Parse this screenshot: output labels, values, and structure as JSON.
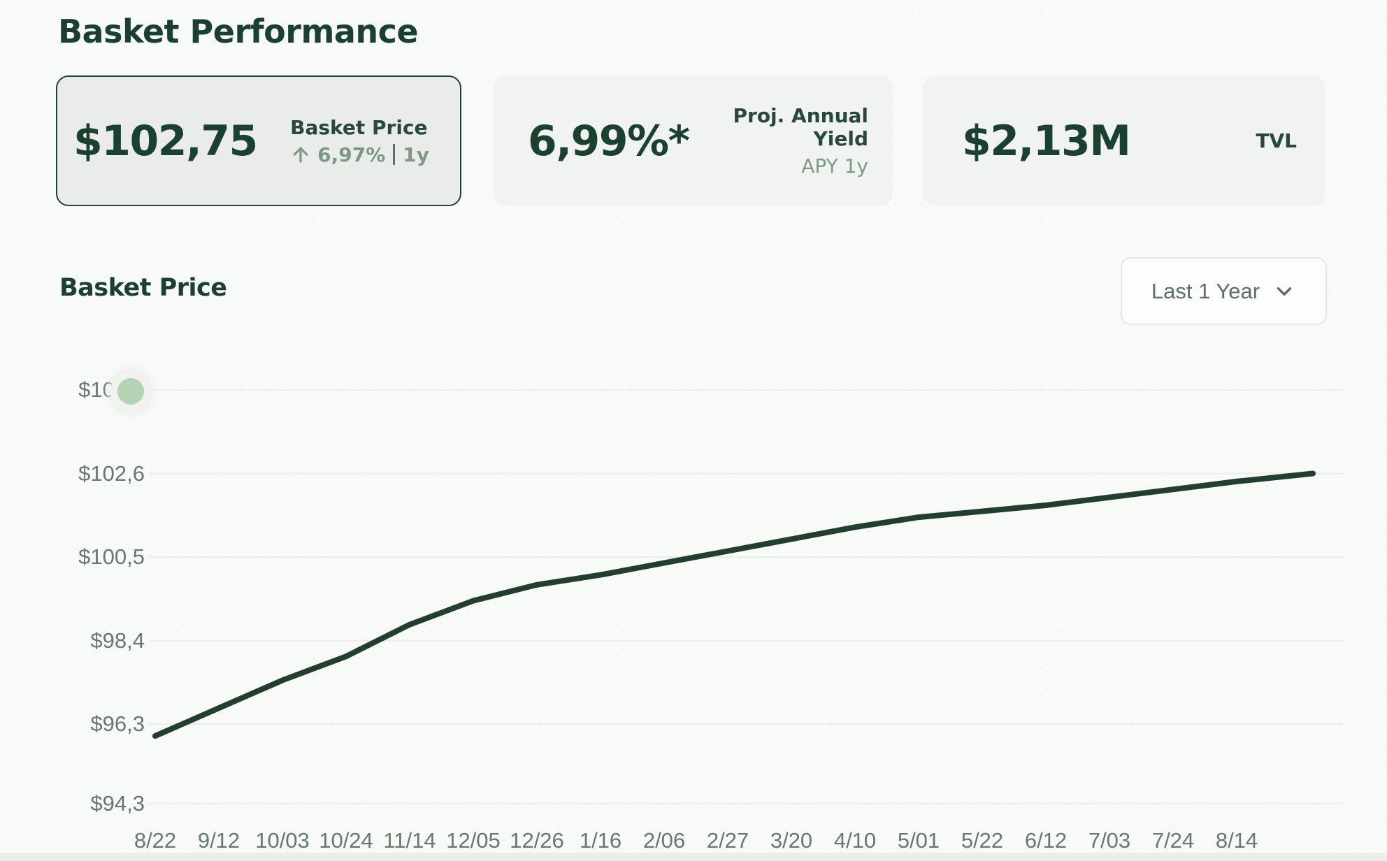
{
  "page": {
    "title": "Basket Performance"
  },
  "stats": {
    "basket_price": {
      "value": "$102,75",
      "label": "Basket Price",
      "change": "6,97%",
      "period": "1y",
      "arrow_icon": "arrow-up"
    },
    "proj_yield": {
      "value": "6,99%*",
      "label": "Proj. Annual Yield",
      "sublabel": "APY 1y"
    },
    "tvl": {
      "value": "$2,13M",
      "label": "TVL"
    }
  },
  "chart_section": {
    "title": "Basket Price",
    "range_selector": {
      "value": "Last 1 Year",
      "chevron_icon": "chevron-down"
    }
  },
  "chart_data": {
    "type": "line",
    "title": "Basket Price",
    "x": [
      "8/22",
      "9/12",
      "10/03",
      "10/24",
      "11/14",
      "12/05",
      "12/26",
      "1/16",
      "2/06",
      "2/27",
      "3/20",
      "4/10",
      "5/01",
      "5/22",
      "6/12",
      "7/03",
      "7/24",
      "8/14"
    ],
    "series": [
      {
        "name": "Basket Price",
        "values": [
          96.0,
          96.7,
          97.4,
          98.0,
          98.8,
          99.4,
          99.8,
          100.05,
          100.35,
          100.65,
          100.95,
          101.25,
          101.5,
          101.65,
          101.8,
          102.0,
          102.2,
          102.4
        ],
        "end_value": 102.6
      }
    ],
    "y_ticks": [
      {
        "label": "$104,7",
        "value": 104.7
      },
      {
        "label": "$102,6",
        "value": 102.6
      },
      {
        "label": "$100,5",
        "value": 100.5
      },
      {
        "label": "$98,4",
        "value": 98.4
      },
      {
        "label": "$96,3",
        "value": 96.3
      },
      {
        "label": "$94,3",
        "value": 94.3
      }
    ],
    "ylim": [
      93.8,
      105.3
    ],
    "grid": true,
    "legend": "none",
    "line_color": "#233d2e",
    "grid_color": "#ececea"
  },
  "colors": {
    "accent_dark_green": "#1c4030",
    "muted_green": "#7e9787",
    "axis_text": "#67796d",
    "card_selected_bg": "#e9ece8",
    "card_bg": "#f1f3f1",
    "highlight_dot": "#b6d2b4"
  }
}
